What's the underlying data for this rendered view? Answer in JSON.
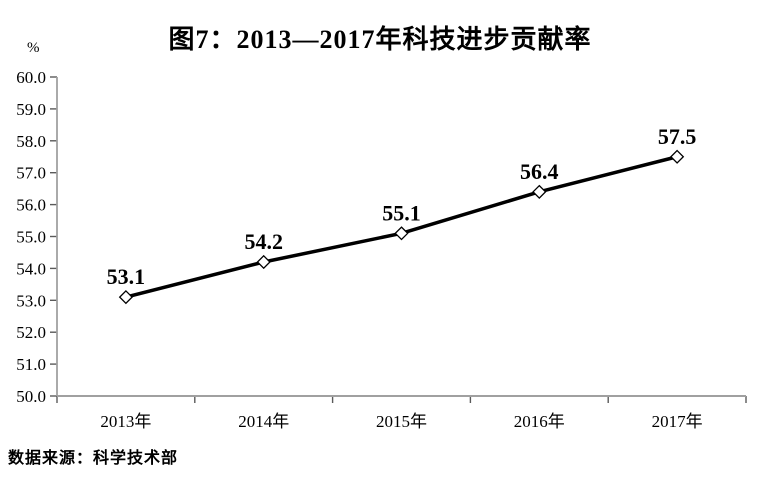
{
  "chart_data": {
    "type": "line",
    "title": "图7：2013—2017年科技进步贡献率",
    "ylabel": "%",
    "xlabel": "",
    "categories": [
      "2013年",
      "2014年",
      "2015年",
      "2016年",
      "2017年"
    ],
    "values": [
      53.1,
      54.2,
      55.1,
      56.4,
      57.5
    ],
    "data_labels": [
      "53.1",
      "54.2",
      "55.1",
      "56.4",
      "57.5"
    ],
    "ylim": [
      50.0,
      60.0
    ],
    "ytick_step": 1.0,
    "ytick_labels": [
      "50.0",
      "51.0",
      "52.0",
      "53.0",
      "54.0",
      "55.0",
      "56.0",
      "57.0",
      "58.0",
      "59.0",
      "60.0"
    ],
    "grid": false,
    "legend": "none",
    "marker": "open-diamond",
    "colors": {
      "line": "#000000",
      "marker_fill": "#ffffff",
      "marker_stroke": "#000000",
      "axis": "#a0a0a0",
      "tick": "#5a5a5a",
      "text": "#000000"
    },
    "source": "数据来源：科学技术部"
  }
}
